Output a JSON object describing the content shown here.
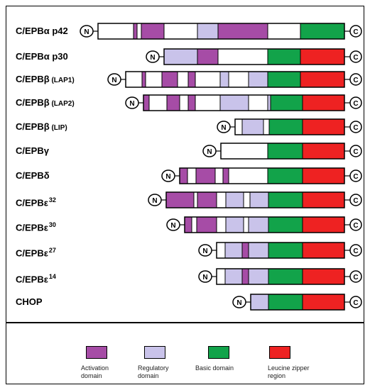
{
  "colors": {
    "activation": "#a64ca6",
    "regulatory": "#c9c3ea",
    "basic": "#12a34a",
    "leucine": "#ee2222",
    "empty": "#ffffff"
  },
  "terminals": {
    "n": "N",
    "c": "C"
  },
  "proteins": [
    {
      "name": "C/EPBα p42",
      "label_main": "C/EPBα",
      "label_sub": "p42",
      "regions": [
        "white",
        "activation",
        "white",
        "activation",
        "white",
        "regulatory",
        "activation",
        "white",
        "basic",
        "leucine"
      ]
    },
    {
      "name": "C/EPBα p30",
      "label_main": "C/EPBα",
      "label_sub": "p30",
      "regions": [
        "regulatory",
        "activation",
        "white",
        "basic",
        "leucine"
      ]
    },
    {
      "name": "C/EPBβ (LAP1)",
      "label_main": "C/EPBβ",
      "label_sub": "(LAP1)",
      "regions": [
        "white",
        "activation",
        "white",
        "activation",
        "white",
        "activation",
        "white",
        "regulatory",
        "white",
        "regulatory",
        "basic",
        "leucine"
      ]
    },
    {
      "name": "C/EPBβ (LAP2)",
      "label_main": "C/EPBβ",
      "label_sub": "(LAP2)",
      "regions": [
        "activation",
        "white",
        "activation",
        "white",
        "activation",
        "white",
        "regulatory",
        "white",
        "regulatory",
        "basic",
        "leucine"
      ]
    },
    {
      "name": "C/EPBβ (LIP)",
      "label_main": "C/EPBβ",
      "label_sub": "(LIP)",
      "regions": [
        "white",
        "regulatory",
        "white",
        "basic",
        "leucine"
      ]
    },
    {
      "name": "C/EPBγ",
      "label_main": "C/EPBγ",
      "label_sub": "",
      "regions": [
        "white",
        "basic",
        "leucine"
      ]
    },
    {
      "name": "C/EPBδ",
      "label_main": "C/EPBδ",
      "label_sub": "",
      "regions": [
        "activation",
        "white",
        "activation",
        "white",
        "activation",
        "white",
        "basic",
        "leucine"
      ]
    },
    {
      "name": "C/EPBε32",
      "label_main": "C/EPBε",
      "label_sup": "32",
      "regions": [
        "activation",
        "white",
        "activation",
        "white",
        "regulatory",
        "white",
        "regulatory",
        "basic",
        "leucine"
      ]
    },
    {
      "name": "C/EPBε30",
      "label_main": "C/EPBε",
      "label_sup": "30",
      "regions": [
        "activation",
        "white",
        "activation",
        "white",
        "regulatory",
        "white",
        "regulatory",
        "basic",
        "leucine"
      ]
    },
    {
      "name": "C/EPBε27",
      "label_main": "C/EPBε",
      "label_sup": "27",
      "regions": [
        "white",
        "regulatory",
        "activation",
        "regulatory",
        "basic",
        "leucine"
      ]
    },
    {
      "name": "C/EPBε14",
      "label_main": "C/EPBε",
      "label_sup": "14",
      "regions": [
        "white",
        "regulatory",
        "activation",
        "regulatory",
        "basic",
        "leucine"
      ]
    },
    {
      "name": "CHOP",
      "label_main": "CHOP",
      "label_sub": "",
      "regions": [
        "regulatory",
        "basic",
        "leucine"
      ]
    }
  ],
  "legend": [
    {
      "key": "activation",
      "label": "Activation\ndomain"
    },
    {
      "key": "regulatory",
      "label": "Regulatory\ndomain"
    },
    {
      "key": "basic",
      "label": "Basic domain"
    },
    {
      "key": "leucine",
      "label": "Leucine zipper\nregion"
    }
  ]
}
